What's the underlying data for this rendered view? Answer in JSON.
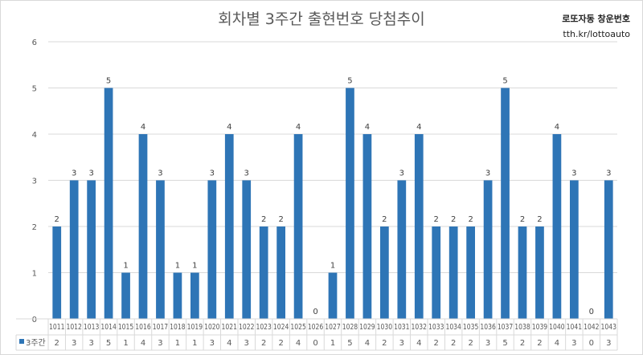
{
  "chart": {
    "title": "회차별 3주간 출현번호 당첨추이",
    "brand_line1": "로또자동 창운번호",
    "brand_line2": "tth.kr/lottoauto"
  },
  "colors": {
    "bar": "#2e75b6",
    "grid": "#d9d9d9",
    "text": "#595959"
  },
  "chart_data": {
    "type": "bar",
    "title": "회차별 3주간 출현번호 당첨추이",
    "xlabel": "",
    "ylabel": "",
    "ylim": [
      0,
      6
    ],
    "yticks": [
      0,
      1,
      2,
      3,
      4,
      5,
      6
    ],
    "grid": true,
    "legend": "data-table-left",
    "data_table": true,
    "categories": [
      "1011",
      "1012",
      "1013",
      "1014",
      "1015",
      "1016",
      "1017",
      "1018",
      "1019",
      "1020",
      "1021",
      "1022",
      "1023",
      "1024",
      "1025",
      "1026",
      "1027",
      "1028",
      "1029",
      "1030",
      "1031",
      "1032",
      "1033",
      "1034",
      "1035",
      "1036",
      "1037",
      "1038",
      "1039",
      "1040",
      "1041",
      "1042",
      "1043"
    ],
    "series": [
      {
        "name": "3주간",
        "values": [
          2,
          3,
          3,
          5,
          1,
          4,
          3,
          1,
          1,
          3,
          4,
          3,
          2,
          2,
          4,
          0,
          1,
          5,
          4,
          2,
          3,
          4,
          2,
          2,
          2,
          3,
          5,
          2,
          2,
          4,
          3,
          0,
          3
        ]
      }
    ]
  }
}
